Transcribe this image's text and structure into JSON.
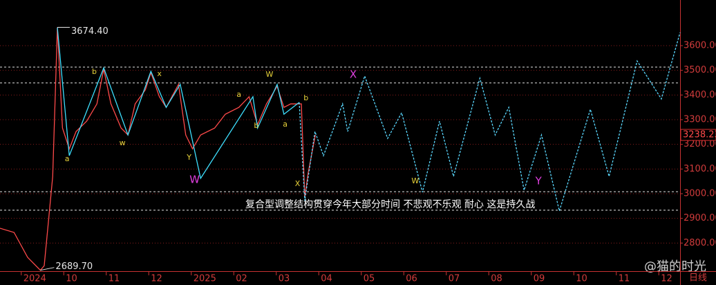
{
  "chart_data": {
    "type": "line",
    "xlim": [
      8.5,
      24.5
    ],
    "xticks": [
      {
        "value": 9,
        "label": "2024"
      },
      {
        "value": 10,
        "label": "10"
      },
      {
        "value": 11,
        "label": "11"
      },
      {
        "value": 12,
        "label": "12"
      },
      {
        "value": 13,
        "label": "2025"
      },
      {
        "value": 14,
        "label": "02"
      },
      {
        "value": 15,
        "label": "03"
      },
      {
        "value": 16,
        "label": "04"
      },
      {
        "value": 17,
        "label": "05"
      },
      {
        "value": 18,
        "label": "06"
      },
      {
        "value": 19,
        "label": "07"
      },
      {
        "value": 20,
        "label": "08"
      },
      {
        "value": 21,
        "label": "09"
      },
      {
        "value": 22,
        "label": "10"
      },
      {
        "value": 23,
        "label": "11"
      },
      {
        "value": 24,
        "label": "12"
      }
    ],
    "period_label": "日线",
    "ylim": [
      2686,
      3785
    ],
    "yticks": [
      {
        "value": 2800,
        "label": "2800.00"
      },
      {
        "value": 2900,
        "label": "2900.00"
      },
      {
        "value": 3000,
        "label": "3000.00"
      },
      {
        "value": 3100,
        "label": "3100.00"
      },
      {
        "value": 3200,
        "label": "3200.00"
      },
      {
        "value": 3300,
        "label": "3300.00"
      },
      {
        "value": 3400,
        "label": "3400.00"
      },
      {
        "value": 3500,
        "label": "3500.00"
      },
      {
        "value": 3600,
        "label": "3600.00"
      }
    ],
    "grid": true,
    "series": [
      {
        "color": "#ff4a4a",
        "style": "solid",
        "x": [
          8.5,
          8.83,
          9.15,
          9.45,
          9.54,
          9.64,
          9.74,
          9.85,
          9.97,
          10.13,
          10.29,
          10.54,
          10.78,
          10.94,
          11.11,
          11.35,
          11.51,
          11.68,
          11.92,
          12.05,
          12.25,
          12.41,
          12.7,
          12.87,
          13.03,
          13.22,
          13.55,
          13.8,
          14.12,
          14.36,
          14.56,
          14.77,
          15.02,
          15.18,
          15.34,
          15.59,
          15.67,
          15.75,
          15.92
        ],
        "values": [
          2860,
          2843,
          2742,
          2689.7,
          2708,
          2888,
          3070,
          3674.4,
          3266,
          3182,
          3252,
          3294,
          3364,
          3505,
          3364,
          3266,
          3238,
          3364,
          3421,
          3491,
          3393,
          3350,
          3443,
          3238,
          3182,
          3238,
          3266,
          3322,
          3350,
          3393,
          3280,
          3364,
          3435,
          3350,
          3364,
          3364,
          2986,
          3084,
          3238.23
        ]
      },
      {
        "color": "#3ee0ff",
        "style": "solid",
        "x": [
          9.85,
          10.13,
          10.94,
          11.51,
          12.05,
          12.41,
          12.74,
          13.22,
          14.45,
          14.56,
          15.02,
          15.18,
          15.54
        ],
        "values": [
          3673,
          3154,
          3510,
          3238,
          3496,
          3350,
          3443,
          3062,
          3393,
          3266,
          3443,
          3322,
          3370
        ]
      },
      {
        "color": "#5ad8ff",
        "style": "dashed",
        "x": [
          15.54,
          15.67,
          15.91,
          16.11,
          16.56,
          16.68,
          17.08,
          17.62,
          17.95,
          18.44,
          18.84,
          19.17,
          19.79,
          20.15,
          20.47,
          20.83,
          21.24,
          21.66,
          22.39,
          22.83,
          23.49,
          24.06,
          24.5
        ],
        "values": [
          3370,
          2972,
          3252,
          3154,
          3364,
          3252,
          3477,
          3224,
          3328,
          3006,
          3294,
          3070,
          3468,
          3238,
          3350,
          3014,
          3238,
          2930,
          3342,
          3070,
          3538,
          3384,
          3653
        ]
      }
    ],
    "reference_lines": [
      3513,
      3449,
      3008,
      2933
    ],
    "high_label": {
      "value": 3674.4,
      "label": "3674.40"
    },
    "low_label": {
      "value": 2689.7,
      "label": "2689.70"
    },
    "last_price": 3238.23,
    "annotations": [
      {
        "text": "a",
        "x": 10.08,
        "y": 3140,
        "color": "#e8d23a"
      },
      {
        "text": "b",
        "x": 10.72,
        "y": 3493,
        "color": "#e8d23a"
      },
      {
        "text": "w",
        "x": 11.38,
        "y": 3205,
        "color": "#e8d23a"
      },
      {
        "text": "x",
        "x": 12.25,
        "y": 3485,
        "color": "#e8d23a"
      },
      {
        "text": "Y",
        "x": 12.95,
        "y": 3146,
        "color": "#e8d23a"
      },
      {
        "text": "a",
        "x": 14.12,
        "y": 3401,
        "color": "#e8d23a"
      },
      {
        "text": "W",
        "x": 14.84,
        "y": 3482,
        "color": "#e8d23a"
      },
      {
        "text": "b",
        "x": 14.53,
        "y": 3275,
        "color": "#e8d23a"
      },
      {
        "text": "a",
        "x": 15.21,
        "y": 3280,
        "color": "#e8d23a"
      },
      {
        "text": "b",
        "x": 15.7,
        "y": 3387,
        "color": "#e8d23a"
      },
      {
        "text": "X",
        "x": 15.5,
        "y": 3039,
        "color": "#e8d23a"
      },
      {
        "text": "W",
        "x": 13.08,
        "y": 3056,
        "color": "#e040e0"
      },
      {
        "text": "X",
        "x": 16.81,
        "y": 3482,
        "color": "#e040e0"
      },
      {
        "text": "W",
        "x": 18.27,
        "y": 3050,
        "color": "#e8d23a"
      },
      {
        "text": "Y",
        "x": 21.17,
        "y": 3050,
        "color": "#e040e0"
      }
    ],
    "note": "复合型调整结构贯穿今年大部分时间  不悲观不乐观  耐心 这是持久战",
    "watermark": "@猫的时光"
  }
}
